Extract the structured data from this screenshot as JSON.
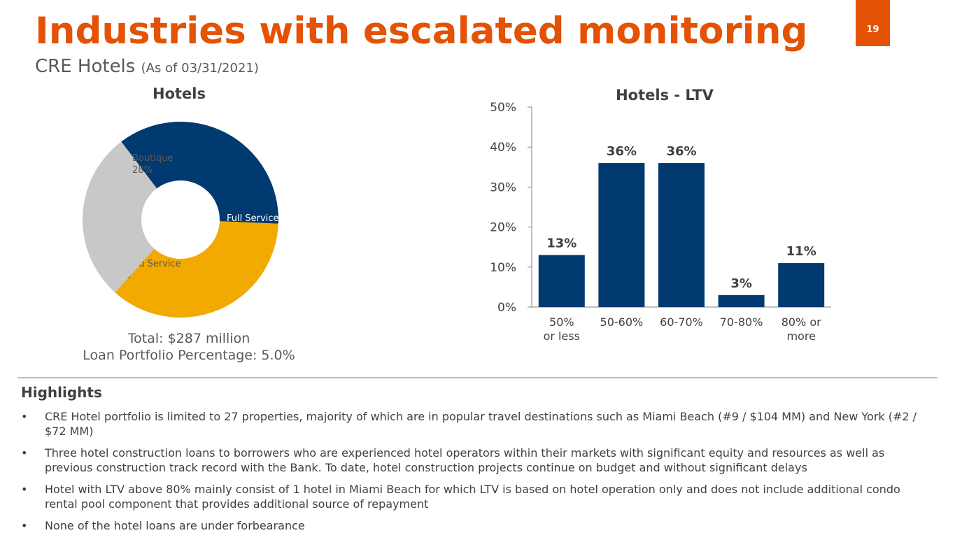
{
  "header": {
    "title": "Industries with escalated monitoring",
    "page_number": "19",
    "subtitle_main": "CRE Hotels",
    "subtitle_asof": "(As of 03/31/2021)"
  },
  "pie_footer": {
    "total": "Total: $287 million",
    "portfolio_pct": "Loan Portfolio Percentage: 5.0%"
  },
  "highlights": {
    "heading": "Highlights",
    "bullet_char": "•",
    "items": [
      "CRE Hotel portfolio is limited to 27 properties, majority of which are in popular travel destinations such as Miami Beach (#9 / $104 MM) and New York (#2 / $72 MM)",
      "Three hotel construction loans to borrowers who are experienced hotel operators within their markets with significant equity and resources as well as previous construction track record with the Bank. To date, hotel construction projects continue on budget and without significant delays",
      "Hotel with LTV above 80% mainly consist of 1 hotel in Miami Beach for which LTV is based on hotel operation only and does not include additional condo rental pool component that provides additional source of repayment",
      "None of the hotel loans are under forbearance"
    ]
  },
  "colors": {
    "accent": "#E35205",
    "bar": "#003A70",
    "full_service": "#003A70",
    "limited_service": "#F2A900",
    "boutique": "#C8C8C8"
  },
  "chart_data": [
    {
      "type": "pie",
      "donut": true,
      "title": "Hotels",
      "slices": [
        {
          "name": "Full Service",
          "label": "36%",
          "value": 36,
          "color": "#003A70",
          "text_color": "#ffffff"
        },
        {
          "name": "Limited Service",
          "label": "36%",
          "value": 36,
          "color": "#F2A900",
          "text_color": "#595959"
        },
        {
          "name": "Boutique",
          "label": "28%",
          "value": 28,
          "color": "#C8C8C8",
          "text_color": "#595959"
        }
      ]
    },
    {
      "type": "bar",
      "title": "Hotels - LTV",
      "categories": [
        [
          "50%",
          "or less"
        ],
        [
          "50-60%"
        ],
        [
          "60-70%"
        ],
        [
          "70-80%"
        ],
        [
          "80% or",
          "more"
        ]
      ],
      "values": [
        13,
        36,
        36,
        3,
        11
      ],
      "value_labels": [
        "13%",
        "36%",
        "36%",
        "3%",
        "11%"
      ],
      "yticks": [
        "0%",
        "10%",
        "20%",
        "30%",
        "40%",
        "50%"
      ],
      "ylim": [
        0,
        50
      ],
      "grid": false,
      "legend": "none"
    }
  ]
}
